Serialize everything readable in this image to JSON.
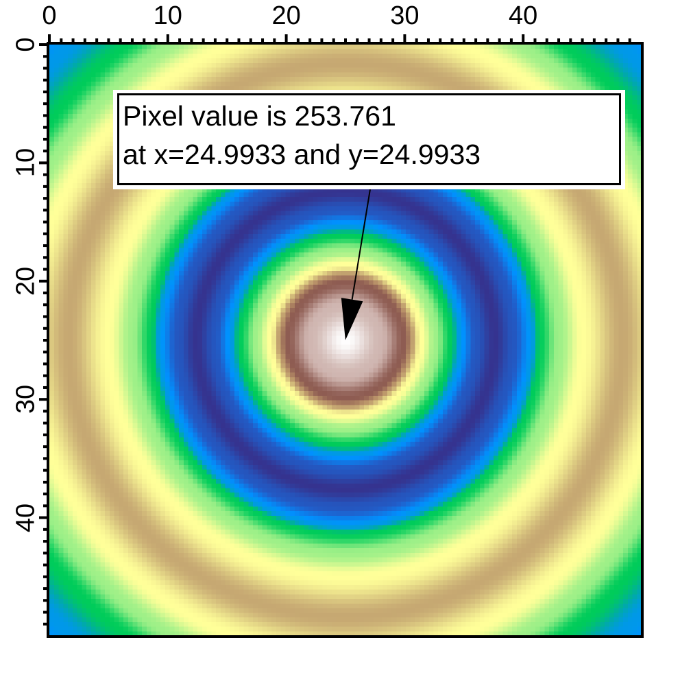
{
  "chart_data": {
    "type": "heatmap",
    "title": "",
    "xlabel": "",
    "ylabel": "",
    "xlim": [
      0,
      50
    ],
    "ylim": [
      0,
      50
    ],
    "x_axis_position": "top",
    "y_axis_inverted": true,
    "xticks": [
      "0",
      "10",
      "20",
      "30",
      "40"
    ],
    "yticks": [
      "0",
      "10",
      "20",
      "30",
      "40"
    ],
    "grid_resolution": 128,
    "center": [
      25,
      25
    ],
    "peak_value": 253.761,
    "radial_profile": {
      "radius": [
        0,
        3,
        4.9,
        6.4,
        7.6,
        8.9,
        9.7,
        11,
        12.6,
        14.2,
        15.7,
        16.4,
        18,
        20,
        23.4,
        26.8,
        29,
        31,
        34,
        37
      ],
      "normalized_value": [
        1.0,
        0.93,
        0.85,
        0.65,
        0.55,
        0.45,
        0.32,
        0.12,
        0.0,
        0.12,
        0.32,
        0.45,
        0.55,
        0.65,
        0.73,
        0.65,
        0.55,
        0.45,
        0.32,
        0.27
      ]
    },
    "colormap": [
      {
        "t": 0.0,
        "color": "#35338f"
      },
      {
        "t": 0.15,
        "color": "#2060cc"
      },
      {
        "t": 0.3,
        "color": "#0092ff"
      },
      {
        "t": 0.38,
        "color": "#00aaa8"
      },
      {
        "t": 0.45,
        "color": "#00cc5a"
      },
      {
        "t": 0.55,
        "color": "#9ef088"
      },
      {
        "t": 0.65,
        "color": "#ffff99"
      },
      {
        "t": 0.73,
        "color": "#c6a872"
      },
      {
        "t": 0.79,
        "color": "#b58d66"
      },
      {
        "t": 0.85,
        "color": "#8e5c52"
      },
      {
        "t": 0.92,
        "color": "#c9aca6"
      },
      {
        "t": 1.0,
        "color": "#ffffff"
      }
    ],
    "annotation": {
      "line1": "Pixel value is 253.761",
      "line2": "at x=24.9933 and y=24.9933",
      "arrow_target": [
        24.9933,
        24.9933
      ]
    }
  }
}
